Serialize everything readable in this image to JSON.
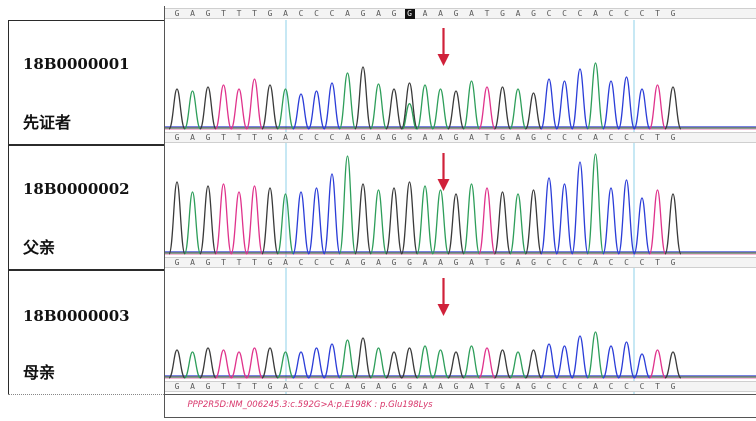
{
  "top_sequence": "GAGTTTGACCCAGAGGAAGATGAGCCCACCCTG",
  "highlight_index": 15,
  "colors": {
    "A": "#2e9e5a",
    "C": "#2b3dd8",
    "G": "#3a3a3a",
    "T": "#e0338c",
    "arrow": "#d0213a",
    "guide": "#8fd0e8"
  },
  "samples": [
    {
      "id": "18B0000001",
      "relation": "先证者",
      "sequence": "GAGTTTGACCCAGAGGAAGATGAGCCCACCCTG"
    },
    {
      "id": "18B0000002",
      "relation": "父亲",
      "sequence": "GAGTTTGACCCAGAGGAAGATGAGCCCACCCTG"
    },
    {
      "id": "18B0000003",
      "relation": "母亲",
      "sequence": "GAGTTTGACCCAGAGGAAGATGAGCCCACCCTG"
    }
  ],
  "caption": "PPP2R5D:NM_006245.3:c.592G>A:p.E198K : p.Glu198Lys"
}
